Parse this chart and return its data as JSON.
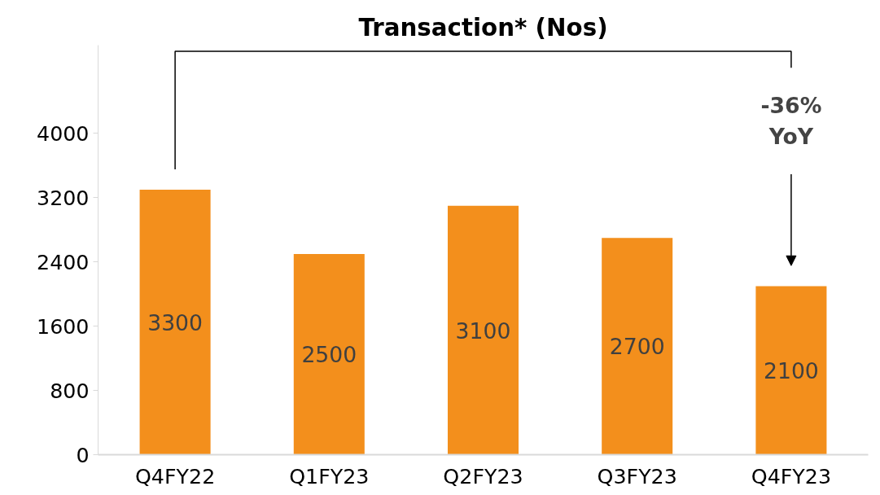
{
  "chart_data": {
    "type": "bar",
    "title": "Transaction* (Nos)",
    "categories": [
      "Q4FY22",
      "Q1FY23",
      "Q2FY23",
      "Q3FY23",
      "Q4FY23"
    ],
    "values": [
      3300,
      2500,
      3100,
      2700,
      2100
    ],
    "color": "#f38f1c",
    "ylim": [
      0,
      5100
    ],
    "yticks": [
      0,
      800,
      1600,
      2400,
      3200,
      4000
    ],
    "grid": false,
    "data_labels": true,
    "annotations": [
      "-36%\nYoY"
    ]
  }
}
